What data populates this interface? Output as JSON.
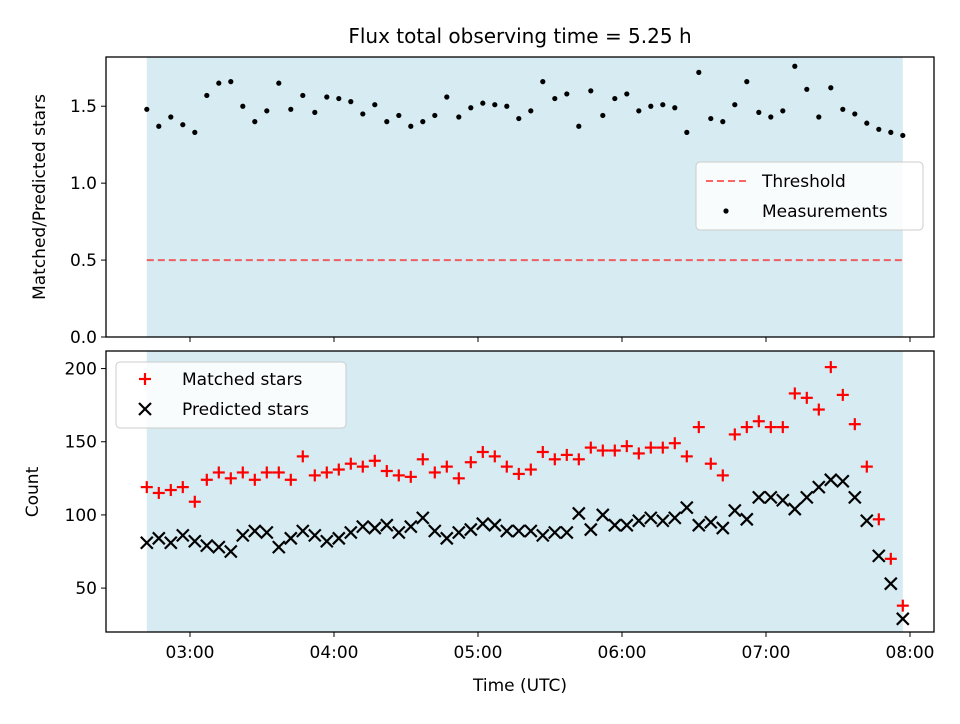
{
  "title": "Flux total observing time = 5.25 h",
  "colors": {
    "span_fill": "#add8e6",
    "threshold": "#ff0000",
    "measurements": "#000000",
    "matched": "#ff0000",
    "predicted": "#000000"
  },
  "chart_data": [
    {
      "type": "scatter",
      "panel": "top",
      "title": "Flux total observing time = 5.25 h",
      "xlabel": "",
      "ylabel": "Matched/Predicted stars",
      "xlim": [
        "02:25",
        "08:10"
      ],
      "ylim": [
        0.0,
        1.82
      ],
      "yticks": [
        "0.0",
        "0.5",
        "1.0",
        "1.5"
      ],
      "shaded_span": [
        "02:42",
        "07:57"
      ],
      "threshold": 0.5,
      "legend_location": "center-right",
      "legend": [
        "Threshold",
        "Measurements"
      ],
      "x": [
        "02:42",
        "02:47",
        "02:52",
        "02:57",
        "03:02",
        "03:07",
        "03:12",
        "03:17",
        "03:22",
        "03:27",
        "03:32",
        "03:37",
        "03:42",
        "03:47",
        "03:52",
        "03:57",
        "04:02",
        "04:07",
        "04:12",
        "04:17",
        "04:22",
        "04:27",
        "04:32",
        "04:37",
        "04:42",
        "04:47",
        "04:52",
        "04:57",
        "05:02",
        "05:07",
        "05:12",
        "05:17",
        "05:22",
        "05:27",
        "05:32",
        "05:37",
        "05:42",
        "05:47",
        "05:52",
        "05:57",
        "06:02",
        "06:07",
        "06:12",
        "06:17",
        "06:22",
        "06:27",
        "06:32",
        "06:37",
        "06:42",
        "06:47",
        "06:52",
        "06:57",
        "07:02",
        "07:07",
        "07:12",
        "07:17",
        "07:22",
        "07:27",
        "07:32",
        "07:37",
        "07:42",
        "07:47",
        "07:52",
        "07:57"
      ],
      "y": [
        1.48,
        1.37,
        1.43,
        1.38,
        1.33,
        1.57,
        1.65,
        1.66,
        1.5,
        1.4,
        1.47,
        1.65,
        1.48,
        1.57,
        1.46,
        1.56,
        1.55,
        1.53,
        1.45,
        1.51,
        1.4,
        1.44,
        1.37,
        1.4,
        1.44,
        1.56,
        1.43,
        1.49,
        1.52,
        1.51,
        1.5,
        1.42,
        1.47,
        1.66,
        1.55,
        1.58,
        1.37,
        1.6,
        1.44,
        1.55,
        1.58,
        1.47,
        1.5,
        1.51,
        1.49,
        1.33,
        1.72,
        1.42,
        1.4,
        1.51,
        1.66,
        1.46,
        1.43,
        1.47,
        1.76,
        1.61,
        1.43,
        1.62,
        1.48,
        1.45,
        1.39,
        1.35,
        1.33,
        1.31
      ]
    },
    {
      "type": "scatter",
      "panel": "bottom",
      "xlabel": "Time (UTC)",
      "ylabel": "Count",
      "xlim": [
        "02:25",
        "08:10"
      ],
      "ylim": [
        20,
        212
      ],
      "yticks": [
        "50",
        "100",
        "150",
        "200"
      ],
      "xticks": [
        "03:00",
        "04:00",
        "05:00",
        "06:00",
        "07:00",
        "08:00"
      ],
      "shaded_span": [
        "02:42",
        "07:57"
      ],
      "legend_location": "upper-left",
      "x": [
        "02:42",
        "02:47",
        "02:52",
        "02:57",
        "03:02",
        "03:07",
        "03:12",
        "03:17",
        "03:22",
        "03:27",
        "03:32",
        "03:37",
        "03:42",
        "03:47",
        "03:52",
        "03:57",
        "04:02",
        "04:07",
        "04:12",
        "04:17",
        "04:22",
        "04:27",
        "04:32",
        "04:37",
        "04:42",
        "04:47",
        "04:52",
        "04:57",
        "05:02",
        "05:07",
        "05:12",
        "05:17",
        "05:22",
        "05:27",
        "05:32",
        "05:37",
        "05:42",
        "05:47",
        "05:52",
        "05:57",
        "06:02",
        "06:07",
        "06:12",
        "06:17",
        "06:22",
        "06:27",
        "06:32",
        "06:37",
        "06:42",
        "06:47",
        "06:52",
        "06:57",
        "07:02",
        "07:07",
        "07:12",
        "07:17",
        "07:22",
        "07:27",
        "07:32",
        "07:37",
        "07:42",
        "07:47",
        "07:52",
        "07:57"
      ],
      "series": [
        {
          "name": "Matched stars",
          "marker": "plus",
          "values": [
            119,
            115,
            117,
            119,
            109,
            124,
            129,
            125,
            129,
            124,
            129,
            129,
            124,
            140,
            127,
            129,
            131,
            135,
            133,
            137,
            130,
            127,
            126,
            138,
            129,
            133,
            125,
            136,
            143,
            140,
            133,
            128,
            131,
            143,
            138,
            141,
            138,
            146,
            144,
            144,
            147,
            142,
            146,
            146,
            149,
            140,
            160,
            135,
            127,
            155,
            160,
            164,
            160,
            160,
            183,
            180,
            172,
            201,
            182,
            162,
            133,
            97,
            70,
            38
          ]
        },
        {
          "name": "Predicted stars",
          "marker": "x",
          "values": [
            81,
            84,
            81,
            86,
            82,
            79,
            78,
            75,
            86,
            89,
            88,
            78,
            84,
            89,
            86,
            82,
            84,
            88,
            92,
            91,
            93,
            88,
            92,
            98,
            89,
            84,
            88,
            90,
            94,
            93,
            89,
            89,
            89,
            86,
            88,
            88,
            101,
            90,
            100,
            93,
            93,
            96,
            98,
            96,
            98,
            105,
            93,
            95,
            91,
            103,
            97,
            112,
            112,
            110,
            104,
            112,
            119,
            124,
            123,
            112,
            96,
            72,
            53,
            29
          ]
        }
      ]
    }
  ]
}
